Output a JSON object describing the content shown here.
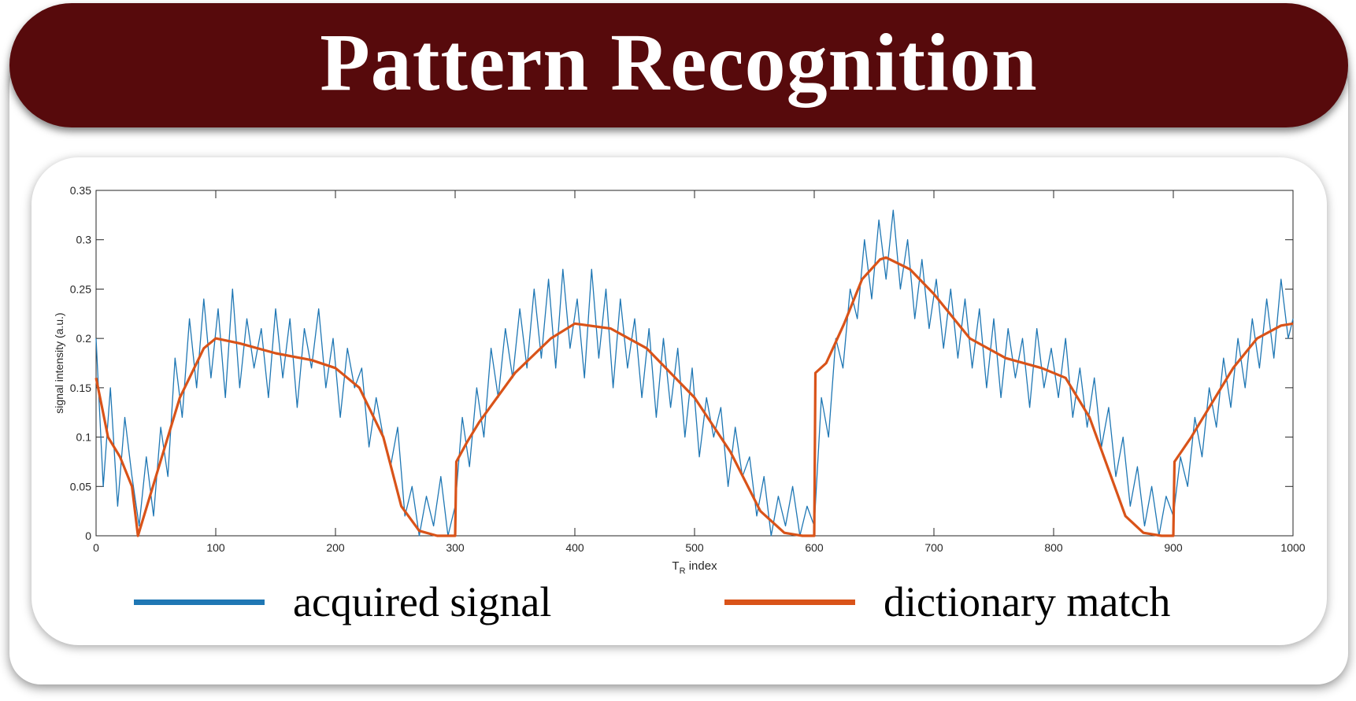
{
  "header": {
    "title": "Pattern Recognition"
  },
  "colors": {
    "title_bg": "#570a0c",
    "acquired": "#1f77b4",
    "match": "#d95319"
  },
  "legend": {
    "items": [
      {
        "label": "acquired signal",
        "color": "#1f77b4"
      },
      {
        "label": "dictionary match",
        "color": "#d95319"
      }
    ]
  },
  "chart_data": {
    "type": "line",
    "xlabel": "T",
    "xlabel_subscript": "R",
    "xlabel_suffix": " index",
    "ylabel": "signal intensity (a.u.)",
    "xlim": [
      0,
      1000
    ],
    "ylim": [
      0,
      0.35
    ],
    "xticks": [
      0,
      100,
      200,
      300,
      400,
      500,
      600,
      700,
      800,
      900,
      1000
    ],
    "yticks": [
      0,
      0.05,
      0.1,
      0.15,
      0.2,
      0.25,
      0.3,
      0.35
    ],
    "ytick_labels": [
      "0",
      "0.05",
      "0.1",
      "0.15",
      "0.2",
      "0.25",
      "0.3",
      "0.35"
    ],
    "grid": false,
    "series": [
      {
        "name": "dictionary match",
        "x": [
          0,
          10,
          20,
          30,
          35,
          50,
          70,
          90,
          100,
          120,
          150,
          180,
          200,
          220,
          240,
          255,
          270,
          285,
          300,
          301,
          310,
          320,
          350,
          380,
          400,
          430,
          460,
          500,
          530,
          555,
          575,
          590,
          600,
          601,
          610,
          625,
          640,
          655,
          660,
          680,
          700,
          730,
          760,
          790,
          810,
          830,
          845,
          860,
          875,
          890,
          900,
          901,
          915,
          930,
          950,
          970,
          990,
          1000
        ],
        "y": [
          0.16,
          0.1,
          0.08,
          0.05,
          0.0,
          0.06,
          0.14,
          0.19,
          0.2,
          0.195,
          0.185,
          0.178,
          0.17,
          0.15,
          0.1,
          0.03,
          0.005,
          0.0,
          0.0,
          0.075,
          0.095,
          0.115,
          0.165,
          0.2,
          0.215,
          0.21,
          0.19,
          0.14,
          0.085,
          0.025,
          0.003,
          0.0,
          0.0,
          0.165,
          0.175,
          0.215,
          0.26,
          0.28,
          0.282,
          0.27,
          0.245,
          0.2,
          0.18,
          0.17,
          0.16,
          0.12,
          0.07,
          0.02,
          0.003,
          0.0,
          0.0,
          0.075,
          0.1,
          0.13,
          0.17,
          0.2,
          0.213,
          0.215
        ]
      },
      {
        "name": "acquired signal",
        "x": [
          0,
          6,
          12,
          18,
          24,
          30,
          36,
          42,
          48,
          54,
          60,
          66,
          72,
          78,
          84,
          90,
          96,
          102,
          108,
          114,
          120,
          126,
          132,
          138,
          144,
          150,
          156,
          162,
          168,
          174,
          180,
          186,
          192,
          198,
          204,
          210,
          216,
          222,
          228,
          234,
          240,
          246,
          252,
          258,
          264,
          270,
          276,
          282,
          288,
          294,
          300,
          306,
          312,
          318,
          324,
          330,
          336,
          342,
          348,
          354,
          360,
          366,
          372,
          378,
          384,
          390,
          396,
          402,
          408,
          414,
          420,
          426,
          432,
          438,
          444,
          450,
          456,
          462,
          468,
          474,
          480,
          486,
          492,
          498,
          504,
          510,
          516,
          522,
          528,
          534,
          540,
          546,
          552,
          558,
          564,
          570,
          576,
          582,
          588,
          594,
          600,
          606,
          612,
          618,
          624,
          630,
          636,
          642,
          648,
          654,
          660,
          666,
          672,
          678,
          684,
          690,
          696,
          702,
          708,
          714,
          720,
          726,
          732,
          738,
          744,
          750,
          756,
          762,
          768,
          774,
          780,
          786,
          792,
          798,
          804,
          810,
          816,
          822,
          828,
          834,
          840,
          846,
          852,
          858,
          864,
          870,
          876,
          882,
          888,
          894,
          900,
          906,
          912,
          918,
          924,
          930,
          936,
          942,
          948,
          954,
          960,
          966,
          972,
          978,
          984,
          990,
          996,
          1000
        ],
        "y": [
          0.2,
          0.05,
          0.15,
          0.03,
          0.12,
          0.06,
          0.01,
          0.08,
          0.02,
          0.11,
          0.06,
          0.18,
          0.12,
          0.22,
          0.15,
          0.24,
          0.16,
          0.23,
          0.14,
          0.25,
          0.15,
          0.22,
          0.17,
          0.21,
          0.14,
          0.23,
          0.16,
          0.22,
          0.13,
          0.21,
          0.17,
          0.23,
          0.15,
          0.2,
          0.12,
          0.19,
          0.15,
          0.17,
          0.09,
          0.14,
          0.1,
          0.07,
          0.11,
          0.02,
          0.05,
          0.0,
          0.04,
          0.01,
          0.06,
          0.0,
          0.03,
          0.12,
          0.07,
          0.15,
          0.1,
          0.19,
          0.14,
          0.21,
          0.16,
          0.23,
          0.17,
          0.25,
          0.18,
          0.26,
          0.17,
          0.27,
          0.19,
          0.24,
          0.16,
          0.27,
          0.18,
          0.25,
          0.15,
          0.24,
          0.17,
          0.22,
          0.14,
          0.21,
          0.12,
          0.2,
          0.13,
          0.19,
          0.1,
          0.17,
          0.08,
          0.14,
          0.1,
          0.13,
          0.05,
          0.11,
          0.06,
          0.08,
          0.02,
          0.06,
          0.0,
          0.04,
          0.01,
          0.05,
          0.0,
          0.03,
          0.01,
          0.14,
          0.1,
          0.2,
          0.17,
          0.25,
          0.22,
          0.3,
          0.24,
          0.32,
          0.26,
          0.33,
          0.25,
          0.3,
          0.22,
          0.28,
          0.21,
          0.26,
          0.19,
          0.25,
          0.18,
          0.24,
          0.17,
          0.23,
          0.15,
          0.22,
          0.14,
          0.21,
          0.16,
          0.2,
          0.13,
          0.21,
          0.15,
          0.19,
          0.14,
          0.2,
          0.12,
          0.17,
          0.11,
          0.16,
          0.09,
          0.13,
          0.06,
          0.1,
          0.03,
          0.07,
          0.01,
          0.05,
          0.0,
          0.04,
          0.02,
          0.08,
          0.05,
          0.12,
          0.08,
          0.15,
          0.11,
          0.18,
          0.13,
          0.2,
          0.15,
          0.22,
          0.17,
          0.24,
          0.18,
          0.26,
          0.2,
          0.22
        ]
      }
    ]
  }
}
